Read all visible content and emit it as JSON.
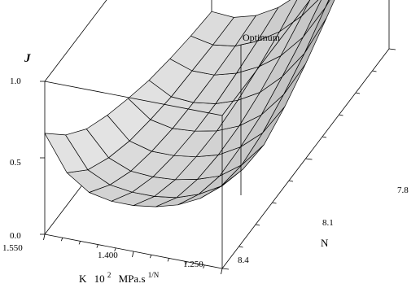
{
  "chart_data": {
    "type": "surface3d",
    "x_axis": {
      "label_parts": [
        "K",
        "10",
        "2",
        "MPa.s",
        "1/N"
      ],
      "tick_labels": [
        "1.550",
        "1.400",
        "1.250"
      ],
      "range": [
        1.55,
        1.25
      ]
    },
    "y_axis": {
      "label": "N",
      "tick_labels": [
        "7.8",
        "8.1",
        "8.4"
      ],
      "range": [
        7.8,
        8.4
      ]
    },
    "z_axis": {
      "label": "J",
      "tick_labels": [
        "0.0",
        "0.5",
        "1.0"
      ],
      "range": [
        0,
        1
      ]
    },
    "grid_size": [
      9,
      9
    ],
    "surface_values": [
      [
        0.66,
        0.43,
        0.33,
        0.3,
        0.3,
        0.32,
        0.36,
        0.43,
        0.54
      ],
      [
        0.47,
        0.27,
        0.2,
        0.18,
        0.18,
        0.2,
        0.25,
        0.33,
        0.47
      ],
      [
        0.33,
        0.17,
        0.11,
        0.1,
        0.11,
        0.14,
        0.19,
        0.29,
        0.45
      ],
      [
        0.24,
        0.1,
        0.06,
        0.06,
        0.08,
        0.12,
        0.2,
        0.32,
        0.52
      ],
      [
        0.17,
        0.06,
        0.03,
        0.04,
        0.07,
        0.13,
        0.23,
        0.39,
        0.62
      ],
      [
        0.11,
        0.03,
        0.02,
        0.04,
        0.09,
        0.17,
        0.3,
        0.48,
        0.74
      ],
      [
        0.07,
        0.02,
        0.02,
        0.06,
        0.13,
        0.23,
        0.38,
        0.6,
        0.87
      ],
      [
        0.04,
        0.01,
        0.03,
        0.09,
        0.18,
        0.31,
        0.48,
        0.72,
        0.96
      ],
      [
        0.02,
        0.01,
        0.05,
        0.13,
        0.25,
        0.4,
        0.6,
        0.84,
        1.0
      ]
    ],
    "annotations": [
      {
        "text": "Optimum",
        "x": 1.25,
        "y": 7.8,
        "z": 1.0
      }
    ],
    "grid": false
  }
}
